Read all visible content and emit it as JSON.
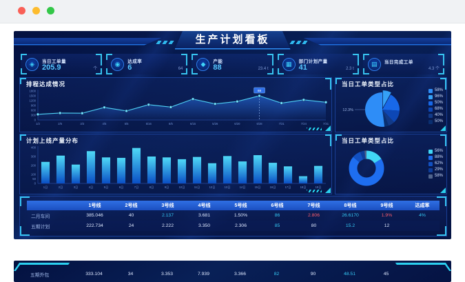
{
  "browser": {
    "close_label": "close",
    "minimize_label": "minimize",
    "zoom_label": "zoom"
  },
  "colors": {
    "accent_cyan": "#2bd0f0",
    "value_blue": "#56c6ff",
    "alert_red": "#ff5f6e",
    "header_blue": "#2f6fe4",
    "background_navy": "#071a55"
  },
  "dashboard": {
    "title": "生产计划看板",
    "kpis": [
      {
        "icon": "order-badge-icon",
        "label": "当日工单量",
        "value": "205.9",
        "sub": "个"
      },
      {
        "icon": "rate-badge-icon",
        "label": "达成率",
        "value": "6",
        "sub": "64"
      },
      {
        "icon": "capacity-shield-icon",
        "label": "产能",
        "value": "88",
        "sub": "23.4 t"
      },
      {
        "icon": "department-icon",
        "label": "部门计划产量",
        "value": "41",
        "sub": "2.3 t"
      },
      {
        "icon": "completed-order-icon",
        "label": "当日完成工单",
        "value": "",
        "sub": "4.3 个"
      }
    ],
    "panel_titles": {
      "line": "排程达成情况",
      "pie": "当日工单类型占比",
      "bar": "计划上线产量分布",
      "donut": "当日工单类型占比"
    }
  },
  "chart_data": [
    {
      "type": "area",
      "title": "排程达成情况",
      "x": [
        "1/2",
        "2/5",
        "3/3",
        "4/5",
        "5/5",
        "5/16",
        "6/5",
        "6/15",
        "5/26",
        "6/20",
        "6/28",
        "7/21",
        "7/24",
        "7/31"
      ],
      "values": [
        350,
        430,
        420,
        780,
        560,
        950,
        800,
        1300,
        1000,
        1150,
        1500,
        1050,
        1250,
        1100
      ],
      "ylim": [
        0,
        1800
      ],
      "yticks": [
        0,
        300,
        600,
        900,
        1200,
        1500,
        1800
      ],
      "tooltip": {
        "index": 10,
        "label": "88"
      },
      "grid": false,
      "legend_position": "none"
    },
    {
      "type": "pie",
      "title": "当日工单类型占比",
      "callout": "12.3%",
      "slices": [
        {
          "label": "96%",
          "value": 8,
          "color": "#35a1f7",
          "explode": true
        },
        {
          "label": "50%",
          "value": 18,
          "color": "#1868e8"
        },
        {
          "label": "68%",
          "value": 12,
          "color": "#0d47b5"
        },
        {
          "label": "40%",
          "value": 6,
          "color": "#123a88"
        },
        {
          "label": "50%",
          "value": 4,
          "color": "#0a2f70"
        },
        {
          "label": "58%",
          "value": 52,
          "color": "#2e8df7"
        }
      ],
      "legend": [
        {
          "label": "58%",
          "color": "#2e8df7"
        },
        {
          "label": "96%",
          "color": "#35a1f7"
        },
        {
          "label": "50%",
          "color": "#1868e8"
        },
        {
          "label": "68%",
          "color": "#0d47b5"
        },
        {
          "label": "40%",
          "color": "#123a88"
        },
        {
          "label": "50%",
          "color": "#0a2f70"
        }
      ],
      "legend_position": "right"
    },
    {
      "type": "bar",
      "title": "计划上线产量分布",
      "categories": [
        "1日",
        "2日",
        "3日",
        "4日",
        "5日",
        "6日",
        "7日",
        "8日",
        "9日",
        "10日",
        "11日",
        "12日",
        "13日",
        "14日",
        "15日",
        "16日",
        "17日",
        "18日",
        "19日"
      ],
      "values": [
        240,
        310,
        210,
        360,
        290,
        285,
        395,
        300,
        290,
        270,
        295,
        225,
        305,
        245,
        315,
        230,
        190,
        80,
        195
      ],
      "ylim": [
        0,
        400
      ],
      "yticks": [
        0,
        50,
        100,
        200,
        300,
        400
      ],
      "grid": false,
      "legend_position": "none"
    },
    {
      "type": "donut",
      "title": "当日工单类型占比",
      "slices": [
        {
          "label": "56%",
          "value": 16,
          "color": "#41d7f6"
        },
        {
          "label": "88%",
          "value": 70,
          "color": "#1e6ef0"
        },
        {
          "label": "62%",
          "value": 8,
          "color": "#1250c0"
        },
        {
          "label": "29%",
          "value": 4,
          "color": "#0d3d9a"
        },
        {
          "label": "58%",
          "value": 2,
          "color": "#50648c"
        }
      ],
      "legend": [
        {
          "label": "56%",
          "color": "#41d7f6"
        },
        {
          "label": "88%",
          "color": "#1e6ef0"
        },
        {
          "label": "62%",
          "color": "#1250c0"
        },
        {
          "label": "29%",
          "color": "#0d3d9a"
        },
        {
          "label": "58%",
          "color": "#50648c"
        }
      ],
      "legend_position": "right"
    }
  ],
  "table": {
    "headers": [
      "",
      "1号线",
      "2号线",
      "3号线",
      "4号线",
      "5号线",
      "6号线",
      "7号线",
      "8号线",
      "9号线",
      "达成率"
    ],
    "rows": [
      {
        "label": "二月车间",
        "cells": [
          {
            "t": "385.046"
          },
          {
            "t": "40"
          },
          {
            "t": "2.137",
            "c": "cyan"
          },
          {
            "t": "3.681"
          },
          {
            "t": "1.50%"
          },
          {
            "t": "86",
            "c": "cyan"
          },
          {
            "t": "2.806",
            "c": "red"
          },
          {
            "t": "26.6170",
            "c": "cyan"
          },
          {
            "t": "1.9%",
            "c": "red"
          },
          {
            "t": "4%",
            "c": "cyan"
          }
        ]
      },
      {
        "label": "五期计划",
        "cells": [
          {
            "t": "222.734"
          },
          {
            "t": "24"
          },
          {
            "t": "2.222"
          },
          {
            "t": "3.350"
          },
          {
            "t": "2.306"
          },
          {
            "t": "85",
            "c": "cyan"
          },
          {
            "t": "80"
          },
          {
            "t": "15.2",
            "c": "cyan"
          },
          {
            "t": "12"
          },
          {
            "t": ""
          }
        ]
      }
    ]
  },
  "table2": {
    "rows": [
      {
        "label": "五期外包",
        "cells": [
          {
            "t": "333.104"
          },
          {
            "t": "34"
          },
          {
            "t": "3.353"
          },
          {
            "t": "7.939"
          },
          {
            "t": "3.366"
          },
          {
            "t": "82",
            "c": "cyan"
          },
          {
            "t": "90"
          },
          {
            "t": "48.51",
            "c": "cyan"
          },
          {
            "t": "45"
          },
          {
            "t": ""
          }
        ]
      }
    ]
  }
}
